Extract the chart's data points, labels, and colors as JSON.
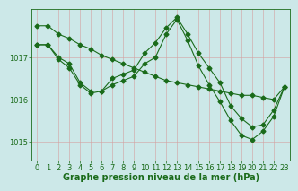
{
  "background_color": "#cce8e8",
  "line_color": "#1a6b1a",
  "title": "Graphe pression niveau de la mer (hPa)",
  "xlim": [
    -0.5,
    23.5
  ],
  "ylim": [
    1014.55,
    1018.15
  ],
  "yticks": [
    1015,
    1016,
    1017
  ],
  "xticks": [
    0,
    1,
    2,
    3,
    4,
    5,
    6,
    7,
    8,
    9,
    10,
    11,
    12,
    13,
    14,
    15,
    16,
    17,
    18,
    19,
    20,
    21,
    22,
    23
  ],
  "curve1_x": [
    0,
    1,
    2,
    3,
    4,
    5,
    6,
    7,
    8,
    9,
    10,
    11,
    12,
    13,
    14,
    15,
    16,
    17,
    18,
    19,
    20,
    21,
    22,
    23
  ],
  "curve1_y": [
    1017.75,
    1017.75,
    1017.55,
    1017.45,
    1017.3,
    1017.2,
    1017.05,
    1016.95,
    1016.85,
    1016.75,
    1016.65,
    1016.55,
    1016.45,
    1016.4,
    1016.35,
    1016.3,
    1016.25,
    1016.2,
    1016.15,
    1016.1,
    1016.1,
    1016.05,
    1016.0,
    1016.3
  ],
  "curve2_x": [
    0,
    1,
    2,
    3,
    4,
    5,
    6,
    7,
    8,
    9,
    10,
    11,
    12,
    13,
    14,
    15,
    16,
    17,
    18,
    19,
    20,
    21,
    22,
    23
  ],
  "curve2_y": [
    1017.3,
    1017.3,
    1017.0,
    1016.85,
    1016.4,
    1016.2,
    1016.2,
    1016.5,
    1016.6,
    1016.7,
    1017.1,
    1017.35,
    1017.7,
    1017.95,
    1017.55,
    1017.1,
    1016.75,
    1016.4,
    1015.85,
    1015.55,
    1015.35,
    1015.4,
    1015.75,
    1016.3
  ],
  "curve3_x": [
    0,
    1,
    2,
    3,
    4,
    5,
    6,
    7,
    8,
    9,
    10,
    11,
    12,
    13,
    14,
    15,
    16,
    17,
    18,
    19,
    20,
    21,
    22,
    23
  ],
  "curve3_y": [
    1017.3,
    1017.3,
    1016.95,
    1016.75,
    1016.35,
    1016.15,
    1016.2,
    1016.35,
    1016.45,
    1016.55,
    1016.85,
    1017.0,
    1017.55,
    1017.9,
    1017.4,
    1016.8,
    1016.35,
    1015.95,
    1015.5,
    1015.15,
    1015.05,
    1015.25,
    1015.6,
    1016.3
  ],
  "title_fontsize": 7.0,
  "tick_fontsize": 6.0,
  "markersize": 2.5
}
